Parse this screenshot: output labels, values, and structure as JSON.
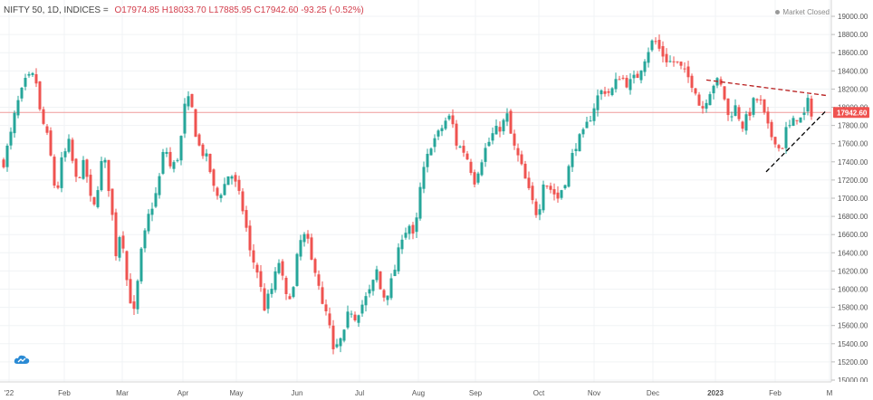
{
  "header": {
    "symbol": "NIFTY 50, 1D, INDICES",
    "symbol_suffix": "=",
    "ohlc": "O17974.85  H18033.70  L17885.95  C17942.60  -93.25 (-0.52%)"
  },
  "market_status": "Market Closed",
  "logo_icon": "cloud-logo-icon",
  "colors": {
    "up": "#26a69a",
    "down": "#ef5350",
    "grid": "#f0f3f5",
    "price_line": "#ef9a9a",
    "resistance": "#b71c1c",
    "support": "#000000",
    "axis_text": "#555555"
  },
  "chart_data": {
    "type": "candlestick",
    "title": "NIFTY 50, 1D, INDICES",
    "yaxis_ticks": [
      19000,
      18800,
      18600,
      18400,
      18200,
      18000,
      17800,
      17600,
      17400,
      17200,
      17000,
      16800,
      16600,
      16400,
      16200,
      16000,
      15800,
      15600,
      15400,
      15200,
      15000
    ],
    "yaxis_labels": [
      "19000.00",
      "18800.00",
      "18600.00",
      "18400.00",
      "18200.00",
      "18000.00",
      "17800.00",
      "17600.00",
      "17400.00",
      "17200.00",
      "17000.00",
      "16800.00",
      "16600.00",
      "16400.00",
      "16200.00",
      "16000.00",
      "15800.00",
      "15600.00",
      "15400.00",
      "15200.00",
      "15000.00"
    ],
    "ylim": [
      14990,
      19050
    ],
    "last_price": 17942.6,
    "last_price_label": "17942.60",
    "xaxis_labels": [
      "'22",
      "Feb",
      "Mar",
      "Apr",
      "May",
      "Jun",
      "Jul",
      "Aug",
      "Sep",
      "Oct",
      "Nov",
      "Dec",
      "2023",
      "Feb",
      "M"
    ],
    "xaxis_bold": [
      "2023"
    ],
    "grid": true,
    "keypoints": [
      [
        0,
        17400
      ],
      [
        8,
        17700
      ],
      [
        14,
        18000
      ],
      [
        25,
        18300
      ],
      [
        35,
        18350
      ],
      [
        40,
        17950
      ],
      [
        50,
        17600
      ],
      [
        58,
        17000
      ],
      [
        64,
        17400
      ],
      [
        72,
        17600
      ],
      [
        80,
        17200
      ],
      [
        90,
        17400
      ],
      [
        95,
        17000
      ],
      [
        100,
        16900
      ],
      [
        110,
        17500
      ],
      [
        118,
        17000
      ],
      [
        124,
        16400
      ],
      [
        130,
        16700
      ],
      [
        137,
        16000
      ],
      [
        145,
        15700
      ],
      [
        150,
        16300
      ],
      [
        160,
        16800
      ],
      [
        170,
        17100
      ],
      [
        178,
        17600
      ],
      [
        185,
        17300
      ],
      [
        194,
        17500
      ],
      [
        200,
        18000
      ],
      [
        206,
        18100
      ],
      [
        214,
        17600
      ],
      [
        226,
        17400
      ],
      [
        234,
        17000
      ],
      [
        242,
        17100
      ],
      [
        250,
        17300
      ],
      [
        258,
        17100
      ],
      [
        266,
        16800
      ],
      [
        272,
        16400
      ],
      [
        280,
        16200
      ],
      [
        288,
        15800
      ],
      [
        296,
        16000
      ],
      [
        304,
        16300
      ],
      [
        312,
        15900
      ],
      [
        320,
        16000
      ],
      [
        326,
        16500
      ],
      [
        334,
        16600
      ],
      [
        340,
        16300
      ],
      [
        346,
        16200
      ],
      [
        352,
        15800
      ],
      [
        358,
        15700
      ],
      [
        364,
        15300
      ],
      [
        370,
        15400
      ],
      [
        376,
        15500
      ],
      [
        382,
        15800
      ],
      [
        388,
        15700
      ],
      [
        394,
        15800
      ],
      [
        400,
        15900
      ],
      [
        406,
        16000
      ],
      [
        412,
        16200
      ],
      [
        418,
        15900
      ],
      [
        426,
        16000
      ],
      [
        434,
        16300
      ],
      [
        440,
        16600
      ],
      [
        448,
        16700
      ],
      [
        454,
        16500
      ],
      [
        458,
        17000
      ],
      [
        464,
        17300
      ],
      [
        472,
        17600
      ],
      [
        480,
        17700
      ],
      [
        488,
        17850
      ],
      [
        494,
        17900
      ],
      [
        500,
        17600
      ],
      [
        510,
        17500
      ],
      [
        520,
        17200
      ],
      [
        530,
        17500
      ],
      [
        540,
        17700
      ],
      [
        550,
        17800
      ],
      [
        556,
        17900
      ],
      [
        562,
        17600
      ],
      [
        570,
        17400
      ],
      [
        576,
        17200
      ],
      [
        582,
        17000
      ],
      [
        590,
        16800
      ],
      [
        596,
        17200
      ],
      [
        604,
        17100
      ],
      [
        612,
        17000
      ],
      [
        620,
        17200
      ],
      [
        626,
        17400
      ],
      [
        632,
        17600
      ],
      [
        640,
        17700
      ],
      [
        648,
        17900
      ],
      [
        655,
        18100
      ],
      [
        662,
        18200
      ],
      [
        670,
        18150
      ],
      [
        680,
        18350
      ],
      [
        690,
        18250
      ],
      [
        700,
        18350
      ],
      [
        710,
        18600
      ],
      [
        718,
        18750
      ],
      [
        726,
        18600
      ],
      [
        734,
        18500
      ],
      [
        742,
        18500
      ],
      [
        750,
        18400
      ],
      [
        758,
        18300
      ],
      [
        764,
        18200
      ],
      [
        770,
        17950
      ],
      [
        778,
        18150
      ],
      [
        786,
        18300
      ],
      [
        794,
        18200
      ],
      [
        800,
        17900
      ],
      [
        808,
        18000
      ],
      [
        816,
        17800
      ],
      [
        822,
        17900
      ],
      [
        830,
        18100
      ],
      [
        836,
        18050
      ],
      [
        840,
        17900
      ],
      [
        846,
        17700
      ],
      [
        852,
        17650
      ],
      [
        858,
        17500
      ],
      [
        864,
        17750
      ],
      [
        870,
        17800
      ],
      [
        876,
        17900
      ],
      [
        882,
        17850
      ],
      [
        888,
        18050
      ],
      [
        892,
        17950
      ]
    ],
    "trendlines": [
      {
        "name": "resistance",
        "style": "dashed",
        "from": [
          780,
          18300
        ],
        "to": [
          912,
          18130
        ]
      },
      {
        "name": "support",
        "style": "dashed",
        "from": [
          846,
          17290
        ],
        "to": [
          912,
          17960
        ]
      }
    ]
  }
}
